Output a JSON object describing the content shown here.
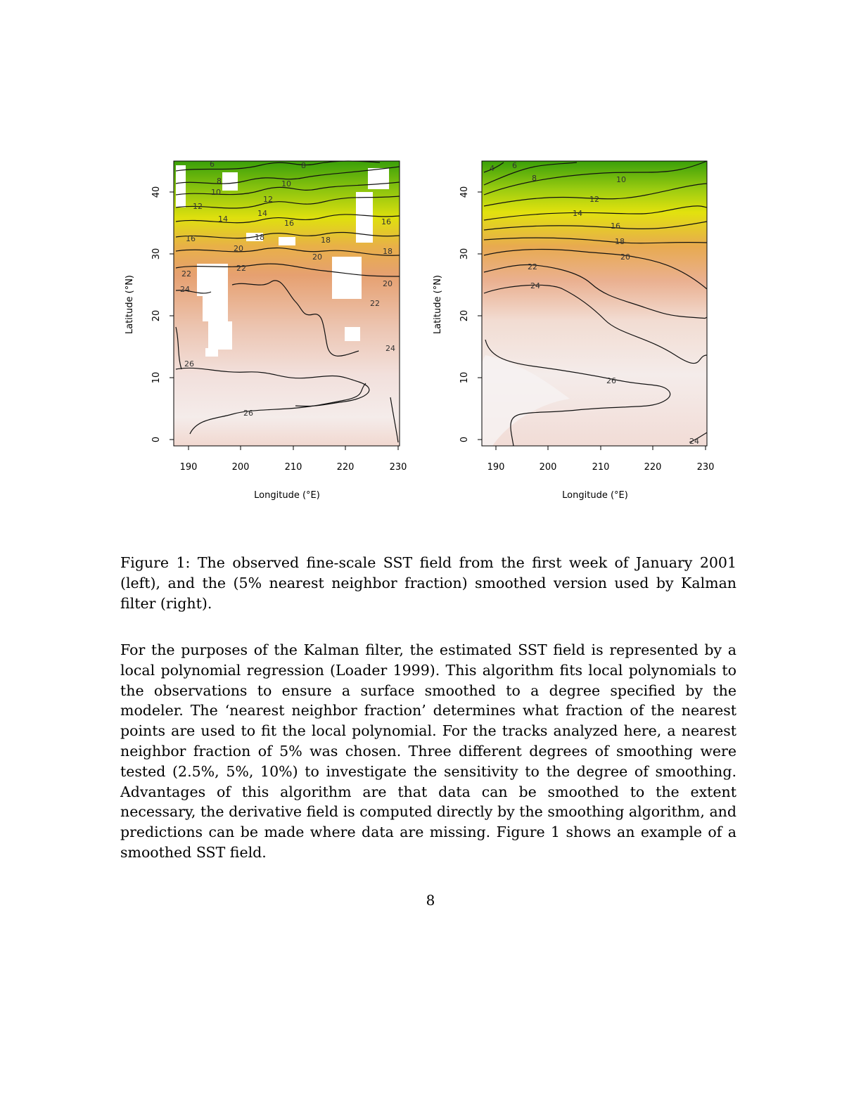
{
  "figure": {
    "caption": "Figure 1: The observed fine-scale SST field from the first week of January 2001 (left), and the (5% nearest neighbor fraction) smoothed version used by Kalman filter (right).",
    "panels": [
      {
        "name": "observed",
        "xlabel": "Longitude (°E)",
        "ylabel": "Latitude (°N)",
        "xticks": [
          "190",
          "200",
          "210",
          "220",
          "230"
        ],
        "yticks": [
          "0",
          "10",
          "20",
          "30",
          "40"
        ],
        "contour_labels": [
          "6",
          "8",
          "8",
          "10",
          "10",
          "12",
          "12",
          "14",
          "14",
          "16",
          "16",
          "16",
          "18",
          "18",
          "18",
          "20",
          "20",
          "20",
          "22",
          "22",
          "22",
          "24",
          "24",
          "26",
          "26"
        ]
      },
      {
        "name": "smoothed",
        "xlabel": "Longitude (°E)",
        "ylabel": "Latitude (°N)",
        "xticks": [
          "190",
          "200",
          "210",
          "220",
          "230"
        ],
        "yticks": [
          "0",
          "10",
          "20",
          "30",
          "40"
        ],
        "contour_labels": [
          "4",
          "6",
          "8",
          "10",
          "12",
          "14",
          "16",
          "18",
          "20",
          "22",
          "24",
          "26",
          "24"
        ]
      }
    ]
  },
  "chart_data": [
    {
      "type": "heatmap",
      "xlabel": "Longitude (°E)",
      "ylabel": "Latitude (°N)",
      "xlim": [
        188,
        230
      ],
      "ylim": [
        -1,
        45
      ],
      "xticks": [
        190,
        200,
        210,
        220,
        230
      ],
      "yticks": [
        0,
        10,
        20,
        30,
        40
      ],
      "contour_levels": [
        6,
        8,
        10,
        12,
        14,
        16,
        18,
        20,
        22,
        24,
        26
      ],
      "colors": {
        "cold": "#3aa00a",
        "mid": "#e4e20e",
        "warm": "#e8a66c",
        "hot": "#f2f2f2"
      }
    },
    {
      "type": "heatmap",
      "xlabel": "Longitude (°E)",
      "ylabel": "Latitude (°N)",
      "xlim": [
        188,
        230
      ],
      "ylim": [
        -1,
        45
      ],
      "xticks": [
        190,
        200,
        210,
        220,
        230
      ],
      "yticks": [
        0,
        10,
        20,
        30,
        40
      ],
      "contour_levels": [
        4,
        6,
        8,
        10,
        12,
        14,
        16,
        18,
        20,
        22,
        24,
        26
      ],
      "colors": {
        "cold": "#3aa00a",
        "mid": "#e4e20e",
        "warm": "#e8a66c",
        "hot": "#f2f2f2"
      }
    }
  ],
  "body_text": "For the purposes of the Kalman filter, the estimated SST field is represented by a local polynomial regression (Loader 1999). This algorithm fits local polynomials to the observations to ensure a surface smoothed to a degree specified by the modeler. The ‘nearest neighbor fraction’ determines what fraction of the nearest points are used to fit the local polynomial. For the tracks analyzed here, a nearest neighbor fraction of 5% was chosen. Three different degrees of smoothing were tested (2.5%, 5%, 10%) to investigate the sensitivity to the degree of smoothing. Advantages of this algorithm are that data can be smoothed to the extent necessary, the derivative field is computed directly by the smoothing algorithm, and predictions can be made where data are missing. Figure 1 shows an example of a smoothed SST field.",
  "page_number": "8"
}
